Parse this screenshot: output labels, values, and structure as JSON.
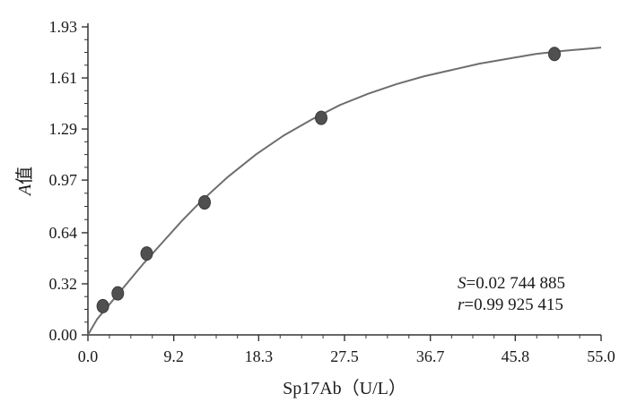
{
  "chart_data": {
    "type": "scatter",
    "xlabel": "Sp17Ab（U/L）",
    "ylabel": "A值",
    "ylabel_italic_part": "A",
    "ylabel_rest": "值",
    "xlim": [
      0.0,
      55.0
    ],
    "ylim": [
      0.0,
      1.93
    ],
    "x_ticks": [
      "0.0",
      "9.2",
      "18.3",
      "27.5",
      "36.7",
      "45.8",
      "55.0"
    ],
    "x_tick_values": [
      0.0,
      9.2,
      18.3,
      27.5,
      36.7,
      45.8,
      55.0
    ],
    "y_ticks": [
      "0.00",
      "0.32",
      "0.64",
      "0.97",
      "1.29",
      "1.61",
      "1.93"
    ],
    "y_tick_values": [
      0.0,
      0.32,
      0.64,
      0.97,
      1.29,
      1.61,
      1.93
    ],
    "grid": false,
    "points": {
      "x": [
        1.6,
        3.2,
        6.3,
        12.5,
        25.0,
        50.0
      ],
      "y": [
        0.18,
        0.26,
        0.51,
        0.83,
        1.36,
        1.76
      ]
    },
    "fit_curve": {
      "x": [
        0,
        1,
        2,
        3,
        4,
        5,
        6,
        8,
        10,
        12,
        15,
        18,
        21,
        24,
        27,
        30,
        33,
        36,
        39,
        42,
        45,
        48,
        51,
        53,
        55
      ],
      "y": [
        0.0,
        0.1,
        0.17,
        0.24,
        0.31,
        0.38,
        0.45,
        0.58,
        0.71,
        0.83,
        0.99,
        1.13,
        1.25,
        1.35,
        1.44,
        1.51,
        1.57,
        1.62,
        1.66,
        1.7,
        1.73,
        1.76,
        1.78,
        1.79,
        1.8
      ]
    },
    "annotations": [
      {
        "symbol": "S",
        "value": "=0.02 744 885"
      },
      {
        "symbol": "r",
        "value": "=0.99 925 415"
      }
    ],
    "colors": {
      "curve": "#6e6e6e",
      "point": "#505050",
      "axis": "#333333"
    }
  }
}
